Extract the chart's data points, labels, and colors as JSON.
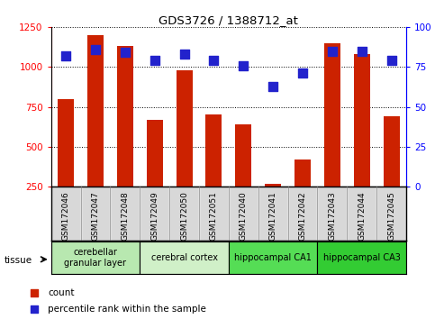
{
  "title": "GDS3726 / 1388712_at",
  "samples": [
    "GSM172046",
    "GSM172047",
    "GSM172048",
    "GSM172049",
    "GSM172050",
    "GSM172051",
    "GSM172040",
    "GSM172041",
    "GSM172042",
    "GSM172043",
    "GSM172044",
    "GSM172045"
  ],
  "counts": [
    800,
    1200,
    1130,
    670,
    980,
    700,
    640,
    270,
    420,
    1150,
    1080,
    690
  ],
  "percentiles": [
    82,
    86,
    84,
    79,
    83,
    79,
    76,
    63,
    71,
    85,
    85,
    79
  ],
  "tissue_groups": [
    {
      "label": "cerebellar\ngranular layer",
      "start": 0,
      "end": 3,
      "color": "#b8e8b0"
    },
    {
      "label": "cerebral cortex",
      "start": 3,
      "end": 6,
      "color": "#d0f0c8"
    },
    {
      "label": "hippocampal CA1",
      "start": 6,
      "end": 9,
      "color": "#55dd55"
    },
    {
      "label": "hippocampal CA3",
      "start": 9,
      "end": 12,
      "color": "#33cc33"
    }
  ],
  "ylim_left": [
    250,
    1250
  ],
  "ylim_right": [
    0,
    100
  ],
  "yticks_left": [
    250,
    500,
    750,
    1000,
    1250
  ],
  "yticks_right": [
    0,
    25,
    50,
    75,
    100
  ],
  "bar_color": "#cc2200",
  "dot_color": "#2222cc",
  "bg_color": "#ffffff",
  "plot_bg": "#ffffff",
  "bar_width": 0.55,
  "dot_size": 45
}
